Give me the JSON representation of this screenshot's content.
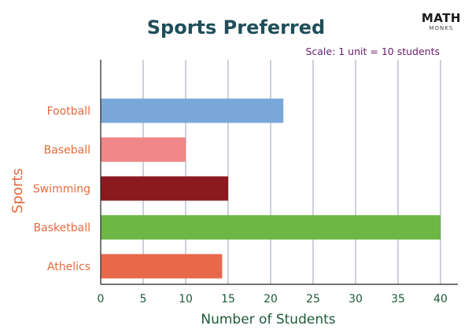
{
  "logo": {
    "main": "MATH",
    "sub": "MONKS"
  },
  "colors": {
    "title": "#1f4e5a",
    "category_label": "#e56a3d",
    "tick_label": "#1d5a3a",
    "xlabel": "#1d5a3a",
    "ylabel": "#e56a3d",
    "note": "#6a1b6d",
    "grid": "#9aa5b5",
    "axis": "#222222"
  },
  "chart_data": {
    "type": "bar",
    "orientation": "horizontal",
    "title": "Sports Preferred",
    "note": "Scale: 1 unit = 10 students",
    "xlabel": "Number of Students",
    "ylabel": "Sports",
    "xlim": [
      0,
      40
    ],
    "xticks": [
      0,
      5,
      10,
      15,
      20,
      25,
      30,
      35,
      40
    ],
    "grid": true,
    "categories": [
      "Football",
      "Baseball",
      "Swimming",
      "Basketball",
      "Athelics"
    ],
    "values": [
      21.5,
      10,
      15,
      40,
      14.3
    ],
    "bar_colors": [
      "#7aa7d9",
      "#f08888",
      "#8b1a1e",
      "#6db845",
      "#e8684a"
    ]
  }
}
